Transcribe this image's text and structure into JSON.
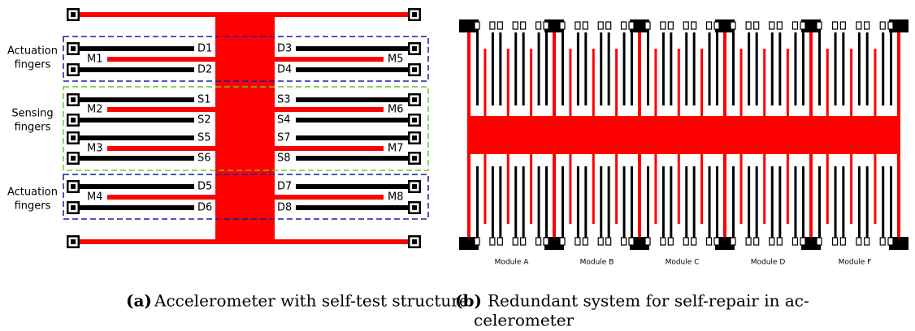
{
  "panel_a": {
    "group_labels": [
      [
        "Actuation",
        "fingers"
      ],
      [
        "Sensing",
        "fingers"
      ],
      [
        "Actuation",
        "fingers"
      ]
    ],
    "rows": [
      [
        "D1",
        "D3"
      ],
      [
        "M1",
        "M5"
      ],
      [
        "D2",
        "D4"
      ],
      [
        "S1",
        "S3"
      ],
      [
        "M2",
        "M6"
      ],
      [
        "S2",
        "S4"
      ],
      [
        "S5",
        "S7"
      ],
      [
        "M3",
        "M7"
      ],
      [
        "S6",
        "S8"
      ],
      [
        "D5",
        "D7"
      ],
      [
        "M4",
        "M8"
      ],
      [
        "D6",
        "D8"
      ]
    ]
  },
  "panel_b": {
    "modules": [
      "Module A",
      "Module B",
      "Module C",
      "Module D",
      "Module F"
    ]
  },
  "captions": {
    "a": {
      "tag": "(a)",
      "text": "Accelerometer with self-test structure"
    },
    "b": {
      "tag": "(b)",
      "lines": [
        "Redundant system for self-repair in ac-",
        "celerometer"
      ]
    }
  }
}
